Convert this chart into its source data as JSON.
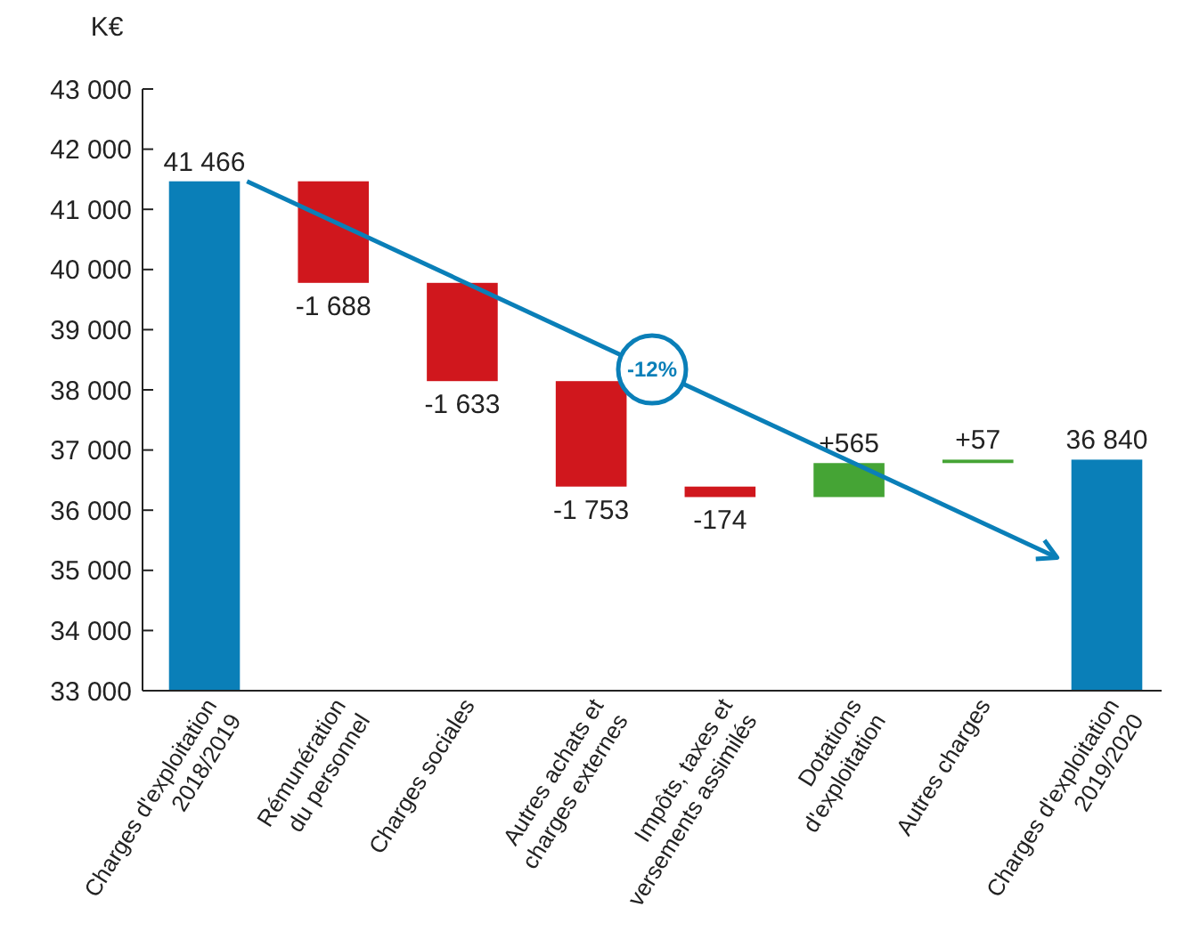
{
  "chart_data": {
    "type": "bar",
    "ylabel": "K€",
    "categories": [
      "Charges d'exploitation\n2018/2019",
      "Rémunération\ndu personnel",
      "Charges sociales",
      "Autres achats et\ncharges externes",
      "Impôts, taxes et\nversements assimilés",
      "Dotations\nd'exploitation",
      "Autres charges",
      "Charges d'exploitation\n2019/2020"
    ],
    "values": [
      41466,
      -1688,
      -1633,
      -1753,
      -174,
      565,
      57,
      36840
    ],
    "base": [
      0,
      41466,
      39778,
      38145,
      36392,
      36218,
      36783,
      0
    ],
    "colors": [
      "#0a7fb8",
      "#d0171d",
      "#d0171d",
      "#d0171d",
      "#d0171d",
      "#45a435",
      "#45a435",
      "#0a7fb8"
    ],
    "value_labels": [
      "41 466",
      "-1 688",
      "-1 633",
      "-1 753",
      "-174",
      "+565",
      "+57",
      "36 840"
    ],
    "ylim": [
      33000,
      43000
    ],
    "yticks": [
      {
        "value": 33000,
        "label": "33 000"
      },
      {
        "value": 34000,
        "label": "34 000"
      },
      {
        "value": 35000,
        "label": "35 000"
      },
      {
        "value": 36000,
        "label": "36 000"
      },
      {
        "value": 37000,
        "label": "37 000"
      },
      {
        "value": 38000,
        "label": "38 000"
      },
      {
        "value": 39000,
        "label": "39 000"
      },
      {
        "value": 40000,
        "label": "40 000"
      },
      {
        "value": 41000,
        "label": "41 000"
      },
      {
        "value": 42000,
        "label": "42 000"
      },
      {
        "value": 43000,
        "label": "43 000"
      }
    ],
    "annotations": [
      "-12%"
    ],
    "grid": false
  }
}
